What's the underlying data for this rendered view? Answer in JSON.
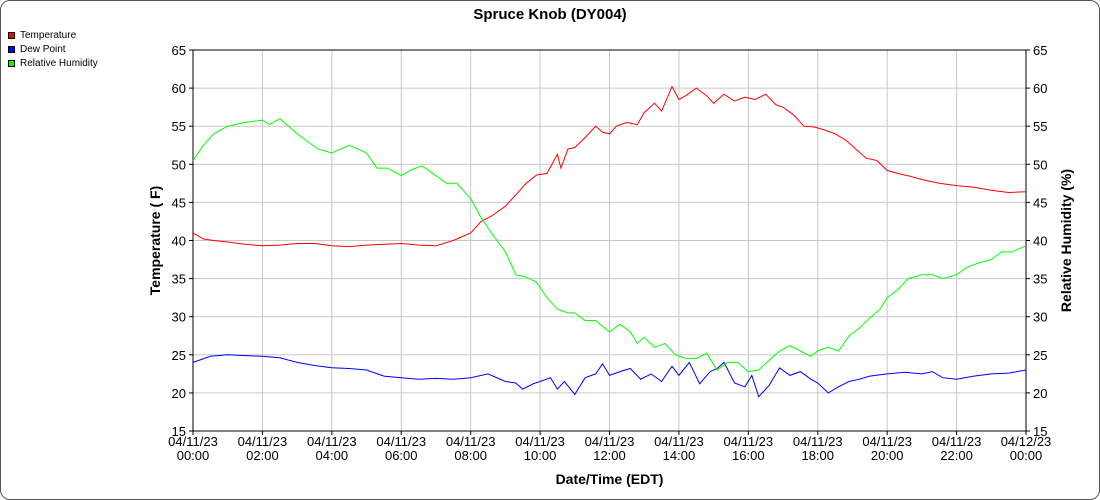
{
  "chart_data": {
    "type": "line",
    "title": "Spruce Knob (DY004)",
    "xlabel": "Date/Time (EDT)",
    "ylabel": "Temperature ( F)",
    "y2label": "Relative Humidity (%)",
    "ylim": [
      15,
      65
    ],
    "y2lim": [
      15,
      65
    ],
    "yticks": [
      15,
      20,
      25,
      30,
      35,
      40,
      45,
      50,
      55,
      60,
      65
    ],
    "xlim": [
      0,
      24
    ],
    "grid": true,
    "legend_position": "top-left",
    "x_tick_labels": [
      [
        "04/11/23",
        "00:00"
      ],
      [
        "04/11/23",
        "02:00"
      ],
      [
        "04/11/23",
        "04:00"
      ],
      [
        "04/11/23",
        "06:00"
      ],
      [
        "04/11/23",
        "08:00"
      ],
      [
        "04/11/23",
        "10:00"
      ],
      [
        "04/11/23",
        "12:00"
      ],
      [
        "04/11/23",
        "14:00"
      ],
      [
        "04/11/23",
        "16:00"
      ],
      [
        "04/11/23",
        "18:00"
      ],
      [
        "04/11/23",
        "20:00"
      ],
      [
        "04/11/23",
        "22:00"
      ],
      [
        "04/12/23",
        "00:00"
      ]
    ],
    "series": [
      {
        "name": "Temperature",
        "color": "#ff0000",
        "axis": "left",
        "x": [
          0,
          0.3,
          0.6,
          1,
          1.5,
          2,
          2.5,
          3,
          3.5,
          4,
          4.5,
          5,
          5.5,
          6,
          6.5,
          7,
          7.5,
          8,
          8.3,
          8.6,
          9,
          9.3,
          9.6,
          9.9,
          10.2,
          10.5,
          10.6,
          10.8,
          11,
          11.3,
          11.6,
          11.8,
          12,
          12.2,
          12.5,
          12.8,
          13,
          13.3,
          13.5,
          13.8,
          14,
          14.2,
          14.5,
          14.8,
          15,
          15.3,
          15.6,
          15.9,
          16.2,
          16.5,
          16.8,
          17,
          17.3,
          17.6,
          17.9,
          18.2,
          18.5,
          18.8,
          19.1,
          19.4,
          19.7,
          20,
          20.3,
          20.6,
          21,
          21.5,
          22,
          22.5,
          23,
          23.5,
          24
        ],
        "values": [
          41,
          40.2,
          40,
          39.8,
          39.5,
          39.3,
          39.4,
          39.6,
          39.6,
          39.3,
          39.2,
          39.4,
          39.5,
          39.6,
          39.4,
          39.3,
          40,
          41,
          42.5,
          43.2,
          44.5,
          46,
          47.5,
          48.6,
          48.8,
          51.3,
          49.5,
          52,
          52.2,
          53.5,
          55,
          54.2,
          54,
          55,
          55.5,
          55.2,
          56.8,
          58,
          57,
          60.2,
          58.5,
          59,
          60,
          59,
          58,
          59.2,
          58.3,
          58.8,
          58.5,
          59.2,
          57.8,
          57.5,
          56.5,
          55,
          54.9,
          54.5,
          54,
          53.2,
          52,
          50.8,
          50.5,
          49.2,
          48.8,
          48.5,
          48,
          47.5,
          47.2,
          47,
          46.6,
          46.3,
          46.4
        ]
      },
      {
        "name": "Dew Point",
        "color": "#0000ff",
        "axis": "left",
        "x": [
          0,
          0.5,
          1,
          1.5,
          2,
          2.5,
          3,
          3.5,
          4,
          4.5,
          5,
          5.5,
          6,
          6.5,
          7,
          7.5,
          8,
          8.5,
          9,
          9.3,
          9.5,
          9.8,
          10,
          10.3,
          10.5,
          10.7,
          11,
          11.3,
          11.6,
          11.8,
          12,
          12.3,
          12.6,
          12.9,
          13.2,
          13.5,
          13.8,
          14,
          14.3,
          14.6,
          14.9,
          15.1,
          15.3,
          15.6,
          15.9,
          16.1,
          16.3,
          16.6,
          16.9,
          17.2,
          17.5,
          17.8,
          18,
          18.3,
          18.6,
          18.9,
          19.2,
          19.5,
          20,
          20.5,
          21,
          21.3,
          21.6,
          22,
          22.5,
          23,
          23.5,
          24
        ],
        "values": [
          24,
          24.8,
          25,
          24.9,
          24.8,
          24.6,
          24,
          23.6,
          23.3,
          23.2,
          23,
          22.2,
          22,
          21.8,
          21.9,
          21.8,
          22,
          22.5,
          21.5,
          21.3,
          20.5,
          21.2,
          21.5,
          22,
          20.5,
          21.5,
          19.8,
          22,
          22.5,
          23.8,
          22.3,
          22.8,
          23.2,
          21.8,
          22.5,
          21.5,
          23.5,
          22.3,
          24,
          21.2,
          22.8,
          23.2,
          24,
          21.3,
          20.8,
          22.3,
          19.5,
          21,
          23.3,
          22.3,
          22.8,
          21.8,
          21.3,
          20,
          20.8,
          21.5,
          21.8,
          22.2,
          22.5,
          22.7,
          22.5,
          22.8,
          22,
          21.8,
          22.2,
          22.5,
          22.6,
          23
        ]
      },
      {
        "name": "Relative Humidity",
        "color": "#00ff00",
        "axis": "right",
        "x": [
          0,
          0.3,
          0.6,
          1,
          1.5,
          2,
          2.2,
          2.5,
          3,
          3.3,
          3.6,
          4,
          4.5,
          5,
          5.3,
          5.6,
          6,
          6.3,
          6.6,
          7,
          7.3,
          7.6,
          8,
          8.3,
          8.6,
          9,
          9.3,
          9.6,
          9.9,
          10.2,
          10.5,
          10.8,
          11,
          11.3,
          11.6,
          12,
          12.3,
          12.6,
          12.8,
          13,
          13.3,
          13.6,
          13.9,
          14.2,
          14.5,
          14.8,
          15.1,
          15.4,
          15.7,
          16,
          16.3,
          16.6,
          16.9,
          17.2,
          17.5,
          17.8,
          18,
          18.3,
          18.6,
          18.9,
          19.2,
          19.5,
          19.8,
          20,
          20.3,
          20.6,
          21,
          21.3,
          21.6,
          22,
          22.3,
          22.6,
          23,
          23.3,
          23.6,
          24
        ],
        "values": [
          50.5,
          52.5,
          54,
          55,
          55.5,
          55.8,
          55.2,
          56,
          54,
          53,
          52,
          51.5,
          52.5,
          51.5,
          49.5,
          49.5,
          48.5,
          49.3,
          49.8,
          48.5,
          47.5,
          47.5,
          45.5,
          43,
          41,
          38.5,
          35.5,
          35.2,
          34.5,
          32.5,
          31,
          30.5,
          30.5,
          29.5,
          29.5,
          28,
          29,
          28,
          26.5,
          27.3,
          26,
          26.5,
          25,
          24.5,
          24.5,
          25.2,
          23,
          24,
          24,
          22.8,
          23,
          24.3,
          25.5,
          26.2,
          25.5,
          24.8,
          25.5,
          26,
          25.5,
          27.5,
          28.5,
          29.8,
          31,
          32.5,
          33.5,
          35,
          35.5,
          35.5,
          35,
          35.5,
          36.5,
          37,
          37.5,
          38.5,
          38.5,
          39.3
        ]
      }
    ]
  }
}
